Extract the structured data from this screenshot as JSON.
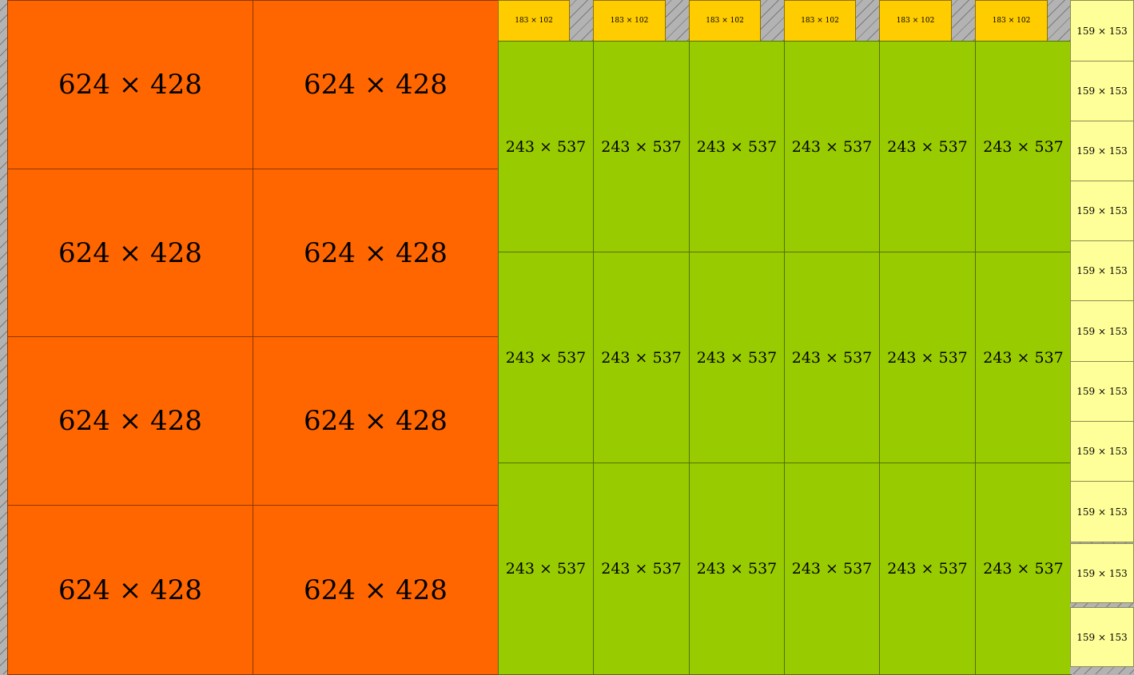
{
  "colors": {
    "large_tile": "#ff6600",
    "header_tile": "#ffcc00",
    "tall_tile": "#99cc00",
    "side_tile": "#ffff99",
    "empty_space": "#b3b3b3"
  },
  "large_tiles": [
    "624 × 428",
    "624 × 428",
    "624 × 428",
    "624 × 428",
    "624 × 428",
    "624 × 428",
    "624 × 428",
    "624 × 428"
  ],
  "header_tiles": [
    "183 × 102",
    "183 × 102",
    "183 × 102",
    "183 × 102",
    "183 × 102",
    "183 × 102"
  ],
  "tall_tiles": [
    "243 × 537",
    "243 × 537",
    "243 × 537",
    "243 × 537",
    "243 × 537",
    "243 × 537",
    "243 × 537",
    "243 × 537",
    "243 × 537",
    "243 × 537",
    "243 × 537",
    "243 × 537",
    "243 × 537",
    "243 × 537",
    "243 × 537",
    "243 × 537",
    "243 × 537",
    "243 × 537"
  ],
  "side_tiles": [
    "159 × 153",
    "159 × 153",
    "159 × 153",
    "159 × 153",
    "159 × 153",
    "159 × 153",
    "159 × 153",
    "159 × 153",
    "159 × 153",
    "159 × 153",
    "159 × 153"
  ]
}
